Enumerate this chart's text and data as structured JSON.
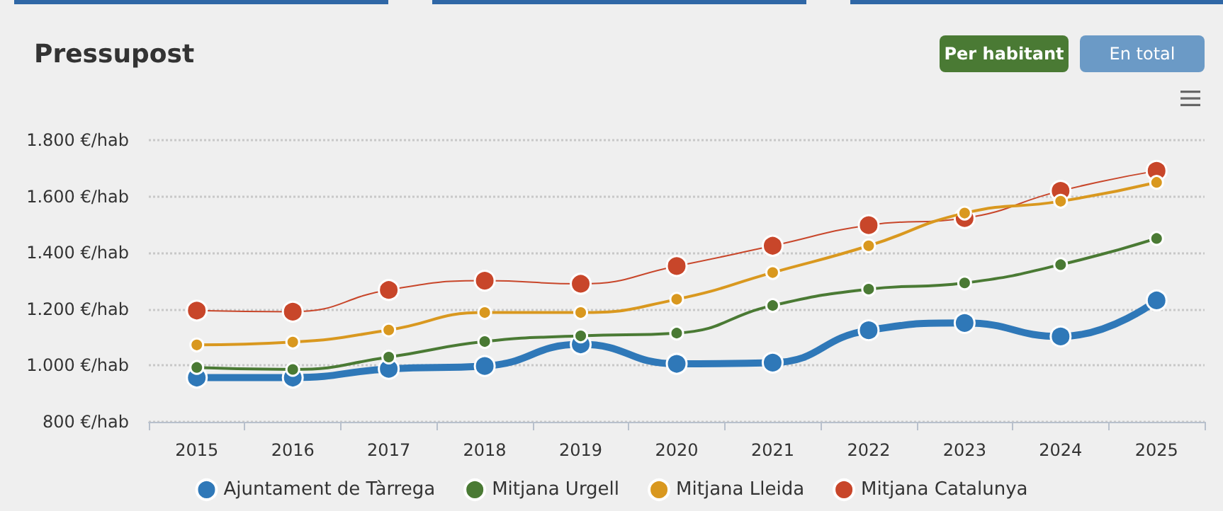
{
  "chart_data": {
    "type": "line",
    "title": "Pressupost",
    "annotations": [
      "Per habitant",
      "En total"
    ],
    "categories": [
      "2015",
      "2016",
      "2017",
      "2018",
      "2019",
      "2020",
      "2021",
      "2022",
      "2023",
      "2024",
      "2025"
    ],
    "series": [
      {
        "name": "Ajuntament de Tàrrega",
        "color": "#2f78b8",
        "values": [
          957,
          957,
          988,
          998,
          1075,
          1006,
          1010,
          1125,
          1151,
          1103,
          1231
        ]
      },
      {
        "name": "Mitjana Urgell",
        "color": "#4a7a34",
        "values": [
          993,
          986,
          1030,
          1085,
          1105,
          1115,
          1213,
          1271,
          1293,
          1358,
          1451
        ]
      },
      {
        "name": "Mitjana Lleida",
        "color": "#d9981f",
        "values": [
          1073,
          1083,
          1126,
          1188,
          1188,
          1235,
          1330,
          1425,
          1541,
          1583,
          1650
        ]
      },
      {
        "name": "Mitjana Catalunya",
        "color": "#c8462a",
        "values": [
          1195,
          1191,
          1268,
          1301,
          1290,
          1353,
          1425,
          1498,
          1523,
          1620,
          1691
        ]
      }
    ],
    "ylim": [
      800,
      1800
    ],
    "yticks": [
      {
        "value": 800,
        "label": "800 €/hab"
      },
      {
        "value": 1000,
        "label": "1.000 €/hab"
      },
      {
        "value": 1200,
        "label": "1.200 €/hab"
      },
      {
        "value": 1400,
        "label": "1.400 €/hab"
      },
      {
        "value": 1600,
        "label": "1.600 €/hab"
      },
      {
        "value": 1800,
        "label": "1.800 €/hab"
      }
    ],
    "grid": "y",
    "legend": "bottom",
    "marker": "circle",
    "line_style": "solid"
  }
}
